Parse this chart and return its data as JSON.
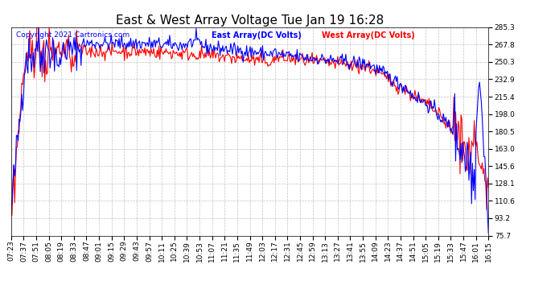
{
  "title": "East & West Array Voltage Tue Jan 19 16:28",
  "copyright": "Copyright 2021 Cartronics.com",
  "legend_east": "East Array(DC Volts)",
  "legend_west": "West Array(DC Volts)",
  "color_east": "blue",
  "color_west": "red",
  "color_title": "black",
  "ylim": [
    75.7,
    285.3
  ],
  "yticks": [
    285.3,
    267.8,
    250.3,
    232.9,
    215.4,
    198.0,
    180.5,
    163.0,
    145.6,
    128.1,
    110.6,
    93.2,
    75.7
  ],
  "xtick_labels": [
    "07:23",
    "07:37",
    "07:51",
    "08:05",
    "08:19",
    "08:33",
    "08:47",
    "09:01",
    "09:15",
    "09:29",
    "09:43",
    "09:57",
    "10:11",
    "10:25",
    "10:39",
    "10:53",
    "11:07",
    "11:21",
    "11:35",
    "11:49",
    "12:03",
    "12:17",
    "12:31",
    "12:45",
    "12:59",
    "13:13",
    "13:27",
    "13:41",
    "13:55",
    "14:09",
    "14:23",
    "14:37",
    "14:51",
    "15:05",
    "15:19",
    "15:33",
    "15:47",
    "16:01",
    "16:15"
  ],
  "background_color": "#ffffff",
  "grid_color": "#bbbbbb",
  "title_fontsize": 11,
  "label_fontsize": 7,
  "tick_fontsize": 6.5,
  "copyright_fontsize": 6.5,
  "line_width": 0.8
}
